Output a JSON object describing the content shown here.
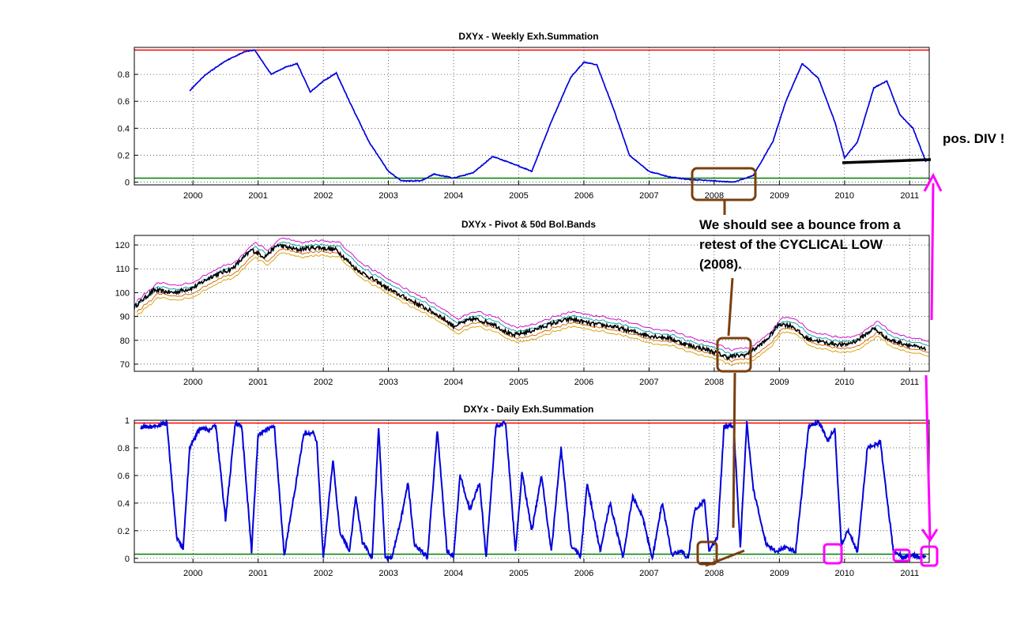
{
  "colors": {
    "upper_threshold": "#ff0000",
    "lower_threshold": "#008000",
    "osc_line": "#0000dd",
    "price_line": "#000000",
    "band_upper": "#cc00cc",
    "band_mid": "#00a0a0",
    "band_lower": "#d06000",
    "band_outer_low": "#d4a000",
    "annot_brown": "#7a3f0f",
    "annot_magenta": "#ff00ff",
    "divergence": "#000000"
  },
  "annotations": {
    "pos_div": "pos. DIV !",
    "bounce_lines": [
      "We should see a bounce  from a",
      "retest of the CYCLICAL LOW",
      "(2008)."
    ]
  },
  "chart_data": [
    {
      "type": "line",
      "title": "DXYx - Weekly Exh.Summation",
      "xlim": [
        1999.1,
        2011.3
      ],
      "ylim": [
        -0.02,
        1.0
      ],
      "x_ticks": [
        2000,
        2001,
        2002,
        2003,
        2004,
        2005,
        2006,
        2007,
        2008,
        2009,
        2010,
        2011
      ],
      "x_tick_labels": [
        "2000",
        "2001",
        "2002",
        "2003",
        "2004",
        "2005",
        "2006",
        "2007",
        "2008",
        "2009",
        "2010",
        "2011"
      ],
      "y_ticks": [
        0,
        0.2,
        0.4,
        0.6,
        0.8
      ],
      "y_tick_labels": [
        "0",
        "0.2",
        "0.4",
        "0.6",
        "0.8"
      ],
      "grid": true,
      "hlines": [
        0.98,
        0.03
      ],
      "series": [
        {
          "x": [
            1999.95,
            2000.2,
            2000.5,
            2000.8,
            2000.95,
            2001.2,
            2001.4,
            2001.6,
            2001.8,
            2002.0,
            2002.2,
            2002.4,
            2002.7,
            2003.0,
            2003.2,
            2003.5,
            2003.7,
            2004.0,
            2004.3,
            2004.6,
            2004.9,
            2005.2,
            2005.5,
            2005.8,
            2006.0,
            2006.2,
            2006.45,
            2006.7,
            2007.0,
            2007.3,
            2007.6,
            2008.0,
            2008.3,
            2008.6,
            2008.9,
            2009.1,
            2009.35,
            2009.6,
            2009.85,
            2010.0,
            2010.2,
            2010.45,
            2010.65,
            2010.85,
            2011.05,
            2011.25
          ],
          "y": [
            0.68,
            0.8,
            0.9,
            0.97,
            0.98,
            0.8,
            0.85,
            0.88,
            0.67,
            0.75,
            0.81,
            0.6,
            0.3,
            0.08,
            0.01,
            0.01,
            0.06,
            0.03,
            0.07,
            0.19,
            0.14,
            0.08,
            0.45,
            0.78,
            0.89,
            0.87,
            0.55,
            0.2,
            0.08,
            0.04,
            0.02,
            0.01,
            0.0,
            0.05,
            0.3,
            0.6,
            0.88,
            0.77,
            0.45,
            0.18,
            0.3,
            0.7,
            0.75,
            0.5,
            0.4,
            0.15
          ]
        }
      ]
    },
    {
      "type": "line",
      "title": "DXYx - Pivot & 50d Bol.Bands",
      "xlim": [
        1999.1,
        2011.3
      ],
      "ylim": [
        67,
        124
      ],
      "x_ticks": [
        2000,
        2001,
        2002,
        2003,
        2004,
        2005,
        2006,
        2007,
        2008,
        2009,
        2010,
        2011
      ],
      "x_tick_labels": [
        "2000",
        "2001",
        "2002",
        "2003",
        "2004",
        "2005",
        "2006",
        "2007",
        "2008",
        "2009",
        "2010",
        "2011"
      ],
      "y_ticks": [
        70,
        80,
        90,
        100,
        110,
        120
      ],
      "y_tick_labels": [
        "70",
        "80",
        "90",
        "100",
        "110",
        "120"
      ],
      "grid": true,
      "series": [
        {
          "x": [
            1999.1,
            1999.4,
            1999.7,
            2000.0,
            2000.3,
            2000.6,
            2000.9,
            2001.1,
            2001.3,
            2001.6,
            2001.9,
            2002.2,
            2002.5,
            2002.8,
            2003.1,
            2003.4,
            2003.8,
            2004.0,
            2004.3,
            2004.6,
            2004.9,
            2005.2,
            2005.5,
            2005.8,
            2006.1,
            2006.4,
            2006.7,
            2007.0,
            2007.3,
            2007.6,
            2007.9,
            2008.2,
            2008.5,
            2008.8,
            2009.0,
            2009.2,
            2009.4,
            2009.7,
            2010.0,
            2010.2,
            2010.45,
            2010.7,
            2011.0,
            2011.25
          ],
          "y": [
            94,
            101,
            100,
            102,
            107,
            110,
            118,
            115,
            120,
            118,
            119,
            118,
            110,
            105,
            100,
            96,
            90,
            86,
            89,
            87,
            82,
            84,
            87,
            89,
            87,
            86,
            84,
            82,
            81,
            78,
            76,
            73,
            74,
            80,
            87,
            86,
            81,
            79,
            78,
            80,
            85,
            80,
            78,
            76
          ]
        }
      ]
    },
    {
      "type": "line",
      "title": "DXYx - Daily Exh.Summation",
      "xlim": [
        1999.1,
        2011.3
      ],
      "ylim": [
        -0.03,
        1.0
      ],
      "x_ticks": [
        2000,
        2001,
        2002,
        2003,
        2004,
        2005,
        2006,
        2007,
        2008,
        2009,
        2010,
        2011
      ],
      "x_tick_labels": [
        "2000",
        "2001",
        "2002",
        "2003",
        "2004",
        "2005",
        "2006",
        "2007",
        "2008",
        "2009",
        "2010",
        "2011"
      ],
      "y_ticks": [
        0,
        0.2,
        0.4,
        0.6,
        0.8,
        1
      ],
      "y_tick_labels": [
        "0",
        "0.2",
        "0.4",
        "0.6",
        "0.8",
        "1"
      ],
      "grid": true,
      "hlines": [
        0.98,
        0.03
      ],
      "series": [
        {
          "x": [
            1999.2,
            1999.45,
            1999.6,
            1999.75,
            1999.85,
            1999.95,
            2000.1,
            2000.25,
            2000.35,
            2000.5,
            2000.65,
            2000.75,
            2000.9,
            2001.0,
            2001.15,
            2001.25,
            2001.4,
            2001.55,
            2001.7,
            2001.85,
            2001.9,
            2002.0,
            2002.15,
            2002.25,
            2002.4,
            2002.5,
            2002.6,
            2002.75,
            2002.85,
            2002.95,
            2003.05,
            2003.2,
            2003.3,
            2003.4,
            2003.6,
            2003.75,
            2003.9,
            2004.0,
            2004.1,
            2004.25,
            2004.4,
            2004.5,
            2004.65,
            2004.8,
            2004.95,
            2005.05,
            2005.2,
            2005.35,
            2005.5,
            2005.65,
            2005.8,
            2005.95,
            2006.05,
            2006.25,
            2006.4,
            2006.6,
            2006.75,
            2006.9,
            2007.05,
            2007.2,
            2007.35,
            2007.5,
            2007.6,
            2007.7,
            2007.85,
            2007.92,
            2008.05,
            2008.15,
            2008.3,
            2008.4,
            2008.5,
            2008.6,
            2008.8,
            2008.95,
            2009.1,
            2009.25,
            2009.45,
            2009.6,
            2009.75,
            2009.85,
            2009.95,
            2010.05,
            2010.2,
            2010.35,
            2010.55,
            2010.75,
            2010.9,
            2011.05,
            2011.15,
            2011.25
          ],
          "y": [
            0.95,
            0.96,
            0.98,
            0.15,
            0.07,
            0.8,
            0.94,
            0.93,
            0.97,
            0.28,
            0.98,
            0.95,
            0.05,
            0.9,
            0.94,
            0.95,
            0.02,
            0.45,
            0.9,
            0.91,
            0.85,
            0.0,
            0.72,
            0.2,
            0.05,
            0.45,
            0.12,
            0.0,
            0.95,
            0.01,
            0.0,
            0.3,
            0.55,
            0.1,
            0.01,
            0.93,
            0.05,
            0.02,
            0.6,
            0.35,
            0.55,
            0.0,
            0.96,
            0.98,
            0.05,
            0.62,
            0.2,
            0.6,
            0.05,
            0.8,
            0.1,
            0.01,
            0.55,
            0.05,
            0.4,
            0.01,
            0.45,
            0.3,
            0.0,
            0.4,
            0.03,
            0.05,
            0.0,
            0.35,
            0.42,
            0.05,
            0.15,
            0.95,
            0.96,
            0.08,
            0.98,
            0.5,
            0.1,
            0.05,
            0.08,
            0.05,
            0.96,
            0.99,
            0.85,
            0.95,
            0.1,
            0.2,
            0.05,
            0.8,
            0.84,
            0.05,
            0.01,
            0.02,
            0.01,
            0.01
          ]
        }
      ]
    }
  ]
}
